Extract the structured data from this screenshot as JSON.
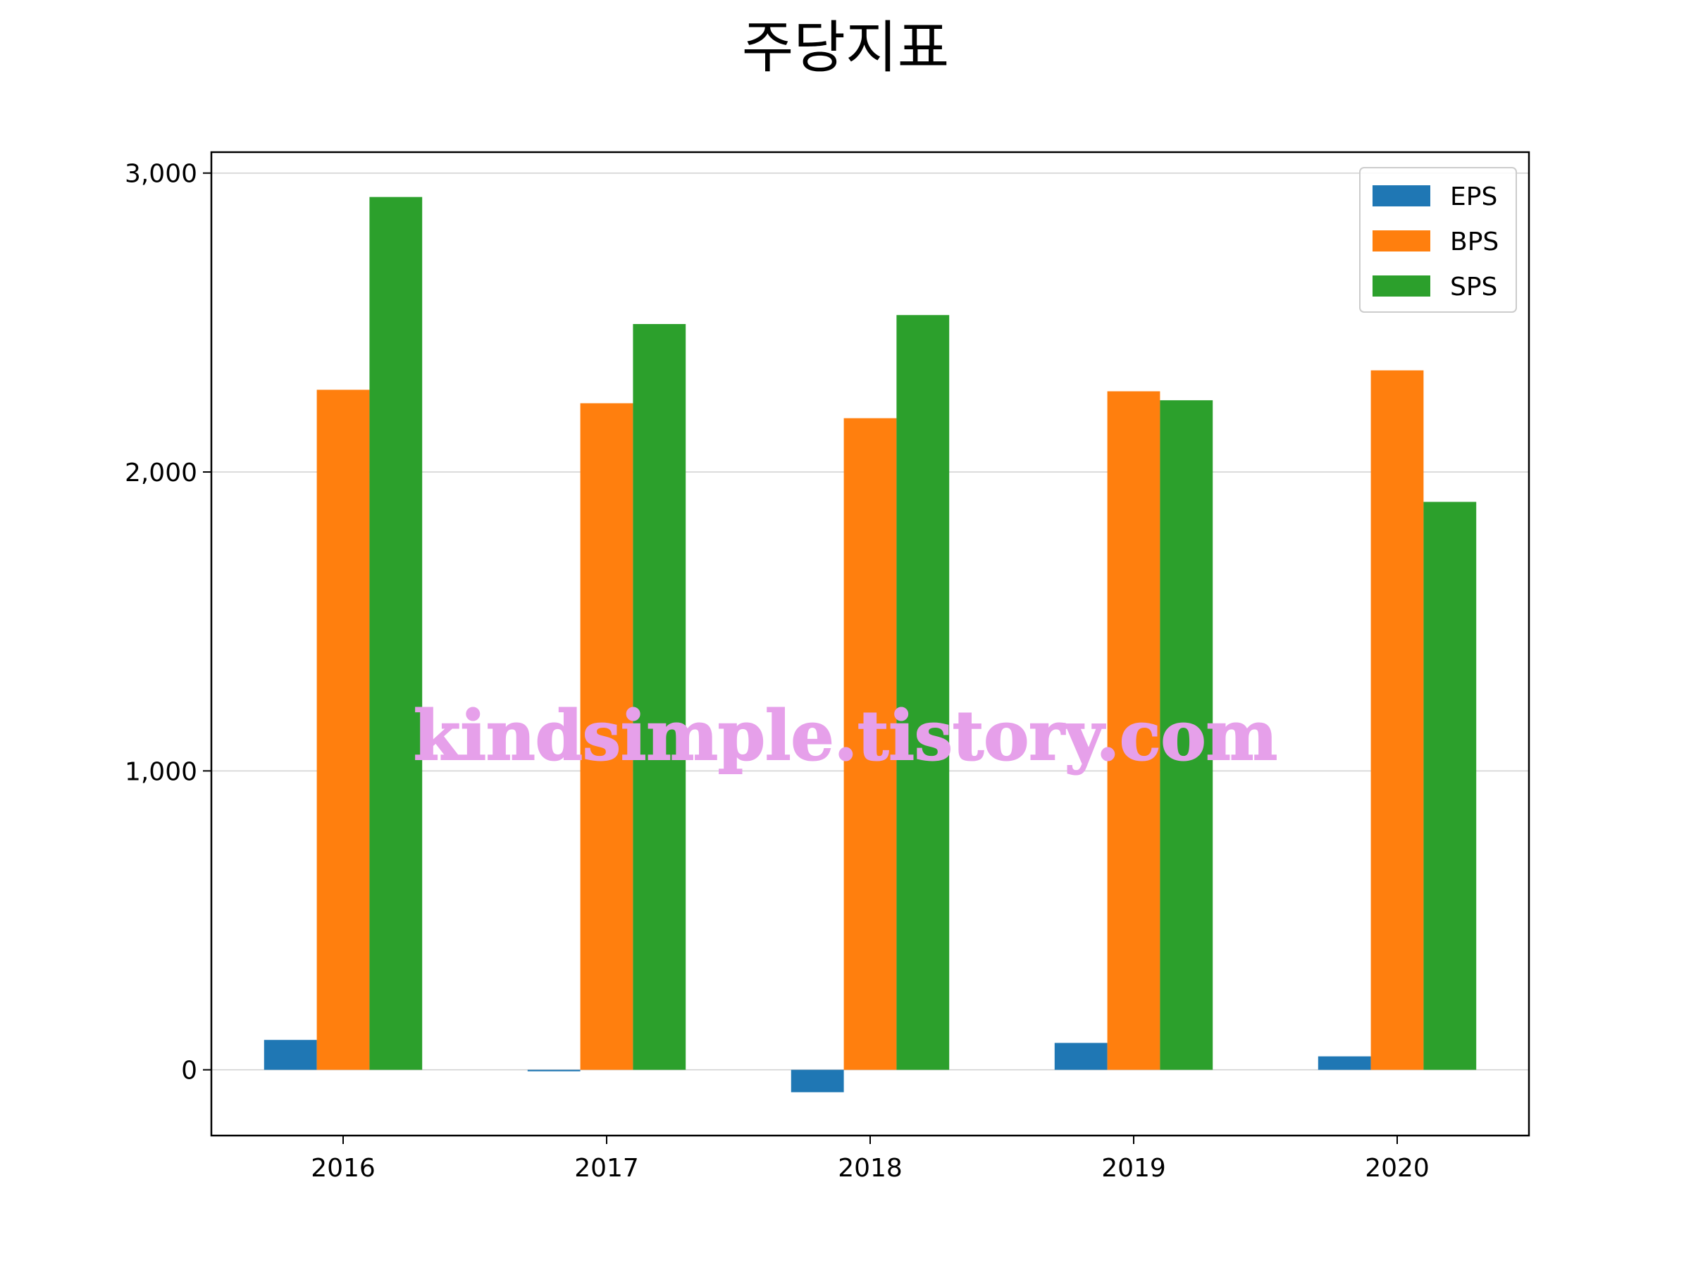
{
  "chart_data": {
    "type": "bar",
    "title": "주당지표",
    "categories": [
      "2016",
      "2017",
      "2018",
      "2019",
      "2020"
    ],
    "series": [
      {
        "name": "EPS",
        "values": [
          100,
          -5,
          -75,
          90,
          45
        ],
        "color": "#1f77b4"
      },
      {
        "name": "BPS",
        "values": [
          2275,
          2230,
          2180,
          2270,
          2340
        ],
        "color": "#ff7f0e"
      },
      {
        "name": "SPS",
        "values": [
          2920,
          2495,
          2525,
          2240,
          1900
        ],
        "color": "#2ca02c"
      }
    ],
    "ylim": [
      -220,
      3070
    ],
    "yticks": [
      0,
      1000,
      2000,
      3000
    ],
    "ytick_labels": [
      "0",
      "1,000",
      "2,000",
      "3,000"
    ],
    "grid": "y",
    "legend_position": "top-right",
    "xlabel": "",
    "ylabel": ""
  },
  "watermark": "kindsimple.tistory.com"
}
